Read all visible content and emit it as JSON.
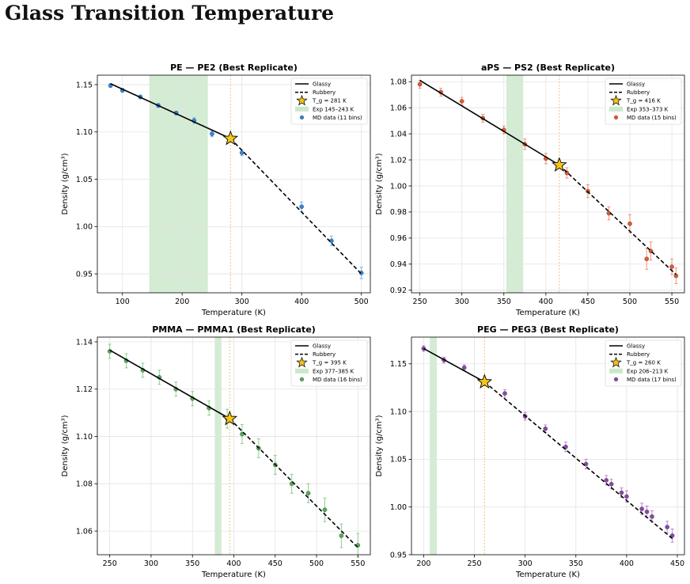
{
  "page_title": "Glass Transition Temperature",
  "colors": {
    "glassy_line": "#000000",
    "rubbery_line": "#000000",
    "tg_star": "#f5c518",
    "exp_band": "#a9d8a9",
    "tg_vline": "#f2c27a"
  },
  "chart_data": [
    {
      "type": "scatter",
      "title": "PE — PE2 (Best Replicate)",
      "xlabel": "Temperature (K)",
      "ylabel": "Density (g/cm³)",
      "xlim": [
        58,
        515
      ],
      "ylim": [
        0.93,
        1.16
      ],
      "xticks": [
        100,
        200,
        300,
        400,
        500
      ],
      "yticks": [
        0.95,
        1.0,
        1.05,
        1.1,
        1.15
      ],
      "y_decimals": 2,
      "grid": true,
      "legend_position": "top-right",
      "point_color": "#2e86de",
      "tg": 281,
      "exp_range": [
        145,
        243
      ],
      "glassy_line": {
        "x": [
          80,
          281
        ],
        "y": [
          1.151,
          1.093
        ]
      },
      "rubbery_line": {
        "x": [
          281,
          500
        ],
        "y": [
          1.093,
          0.95
        ]
      },
      "legend": [
        "Glassy",
        "Rubbery",
        "T_g = 281 K",
        "Exp 145–243 K",
        "MD data (11 bins)"
      ],
      "points": [
        {
          "x": 80,
          "y": 1.149,
          "err": 0.002
        },
        {
          "x": 100,
          "y": 1.144,
          "err": 0.002
        },
        {
          "x": 130,
          "y": 1.137,
          "err": 0.002
        },
        {
          "x": 160,
          "y": 1.128,
          "err": 0.002
        },
        {
          "x": 190,
          "y": 1.12,
          "err": 0.002
        },
        {
          "x": 220,
          "y": 1.112,
          "err": 0.003
        },
        {
          "x": 250,
          "y": 1.098,
          "err": 0.003
        },
        {
          "x": 300,
          "y": 1.078,
          "err": 0.003
        },
        {
          "x": 400,
          "y": 1.021,
          "err": 0.005
        },
        {
          "x": 450,
          "y": 0.985,
          "err": 0.005
        },
        {
          "x": 500,
          "y": 0.951,
          "err": 0.006
        }
      ]
    },
    {
      "type": "scatter",
      "title": "aPS — PS2 (Best Replicate)",
      "xlabel": "Temperature (K)",
      "ylabel": "Density (g/cm³)",
      "xlim": [
        240,
        565
      ],
      "ylim": [
        0.918,
        1.085
      ],
      "xticks": [
        250,
        300,
        350,
        400,
        450,
        500,
        550
      ],
      "yticks": [
        0.92,
        0.94,
        0.96,
        0.98,
        1.0,
        1.02,
        1.04,
        1.06,
        1.08
      ],
      "y_decimals": 2,
      "grid": true,
      "legend_position": "top-right",
      "point_color": "#e8562a",
      "tg": 416,
      "exp_range": [
        353,
        373
      ],
      "glassy_line": {
        "x": [
          250,
          416
        ],
        "y": [
          1.081,
          1.016
        ]
      },
      "rubbery_line": {
        "x": [
          416,
          555
        ],
        "y": [
          1.016,
          0.932
        ]
      },
      "legend": [
        "Glassy",
        "Rubbery",
        "T_g = 416 K",
        "Exp 353–373 K",
        "MD data (15 bins)"
      ],
      "points": [
        {
          "x": 250,
          "y": 1.078,
          "err": 0.003
        },
        {
          "x": 275,
          "y": 1.072,
          "err": 0.003
        },
        {
          "x": 300,
          "y": 1.065,
          "err": 0.003
        },
        {
          "x": 325,
          "y": 1.052,
          "err": 0.003
        },
        {
          "x": 350,
          "y": 1.043,
          "err": 0.003
        },
        {
          "x": 375,
          "y": 1.032,
          "err": 0.004
        },
        {
          "x": 400,
          "y": 1.021,
          "err": 0.004
        },
        {
          "x": 425,
          "y": 1.01,
          "err": 0.004
        },
        {
          "x": 450,
          "y": 0.996,
          "err": 0.005
        },
        {
          "x": 475,
          "y": 0.979,
          "err": 0.005
        },
        {
          "x": 500,
          "y": 0.971,
          "err": 0.007
        },
        {
          "x": 520,
          "y": 0.944,
          "err": 0.008
        },
        {
          "x": 525,
          "y": 0.95,
          "err": 0.007
        },
        {
          "x": 550,
          "y": 0.938,
          "err": 0.006
        },
        {
          "x": 555,
          "y": 0.931,
          "err": 0.006
        }
      ]
    },
    {
      "type": "scatter",
      "title": "PMMA — PMMA1 (Best Replicate)",
      "xlabel": "Temperature (K)",
      "ylabel": "Density (g/cm³)",
      "xlim": [
        235,
        565
      ],
      "ylim": [
        1.05,
        1.142
      ],
      "xticks": [
        250,
        300,
        350,
        400,
        450,
        500,
        550
      ],
      "yticks": [
        1.06,
        1.08,
        1.1,
        1.12,
        1.14
      ],
      "y_decimals": 2,
      "grid": true,
      "legend_position": "top-right",
      "point_color": "#4caf50",
      "tg": 395,
      "exp_range": [
        377,
        385
      ],
      "glassy_line": {
        "x": [
          250,
          395
        ],
        "y": [
          1.1365,
          1.1075
        ]
      },
      "rubbery_line": {
        "x": [
          395,
          550
        ],
        "y": [
          1.1075,
          1.053
        ]
      },
      "legend": [
        "Glassy",
        "Rubbery",
        "T_g = 395 K",
        "Exp 377–385 K",
        "MD data (16 bins)"
      ],
      "points": [
        {
          "x": 250,
          "y": 1.136,
          "err": 0.003
        },
        {
          "x": 270,
          "y": 1.132,
          "err": 0.003
        },
        {
          "x": 290,
          "y": 1.128,
          "err": 0.003
        },
        {
          "x": 310,
          "y": 1.125,
          "err": 0.003
        },
        {
          "x": 330,
          "y": 1.12,
          "err": 0.003
        },
        {
          "x": 350,
          "y": 1.116,
          "err": 0.003
        },
        {
          "x": 370,
          "y": 1.112,
          "err": 0.003
        },
        {
          "x": 410,
          "y": 1.101,
          "err": 0.004
        },
        {
          "x": 430,
          "y": 1.095,
          "err": 0.004
        },
        {
          "x": 450,
          "y": 1.088,
          "err": 0.004
        },
        {
          "x": 470,
          "y": 1.08,
          "err": 0.004
        },
        {
          "x": 490,
          "y": 1.076,
          "err": 0.004
        },
        {
          "x": 510,
          "y": 1.069,
          "err": 0.005
        },
        {
          "x": 530,
          "y": 1.058,
          "err": 0.005
        },
        {
          "x": 550,
          "y": 1.054,
          "err": 0.005
        },
        {
          "x": 392,
          "y": 1.1075,
          "err": 0.004
        }
      ]
    },
    {
      "type": "scatter",
      "title": "PEG — PEG3 (Best Replicate)",
      "xlabel": "Temperature (K)",
      "ylabel": "Density (g/cm³)",
      "xlim": [
        188,
        457
      ],
      "ylim": [
        0.95,
        1.178
      ],
      "xticks": [
        200,
        250,
        300,
        350,
        400,
        450
      ],
      "yticks": [
        0.95,
        1.0,
        1.05,
        1.1,
        1.15
      ],
      "y_decimals": 2,
      "grid": true,
      "legend_position": "top-right",
      "point_color": "#8e44ad",
      "tg": 260,
      "exp_range": [
        206,
        213
      ],
      "glassy_line": {
        "x": [
          200,
          260
        ],
        "y": [
          1.166,
          1.131
        ]
      },
      "rubbery_line": {
        "x": [
          260,
          445
        ],
        "y": [
          1.131,
          0.967
        ]
      },
      "legend": [
        "Glassy",
        "Rubbery",
        "T_g = 260 K",
        "Exp 206–213 K",
        "MD data (17 bins)"
      ],
      "points": [
        {
          "x": 200,
          "y": 1.166,
          "err": 0.003
        },
        {
          "x": 220,
          "y": 1.154,
          "err": 0.003
        },
        {
          "x": 240,
          "y": 1.146,
          "err": 0.003
        },
        {
          "x": 280,
          "y": 1.119,
          "err": 0.004
        },
        {
          "x": 300,
          "y": 1.095,
          "err": 0.004
        },
        {
          "x": 320,
          "y": 1.082,
          "err": 0.004
        },
        {
          "x": 340,
          "y": 1.063,
          "err": 0.005
        },
        {
          "x": 360,
          "y": 1.045,
          "err": 0.005
        },
        {
          "x": 380,
          "y": 1.028,
          "err": 0.005
        },
        {
          "x": 385,
          "y": 1.024,
          "err": 0.005
        },
        {
          "x": 400,
          "y": 1.011,
          "err": 0.006
        },
        {
          "x": 415,
          "y": 0.998,
          "err": 0.006
        },
        {
          "x": 420,
          "y": 0.995,
          "err": 0.006
        },
        {
          "x": 425,
          "y": 0.99,
          "err": 0.006
        },
        {
          "x": 440,
          "y": 0.979,
          "err": 0.006
        },
        {
          "x": 445,
          "y": 0.97,
          "err": 0.007
        },
        {
          "x": 395,
          "y": 1.015,
          "err": 0.005
        }
      ]
    }
  ]
}
